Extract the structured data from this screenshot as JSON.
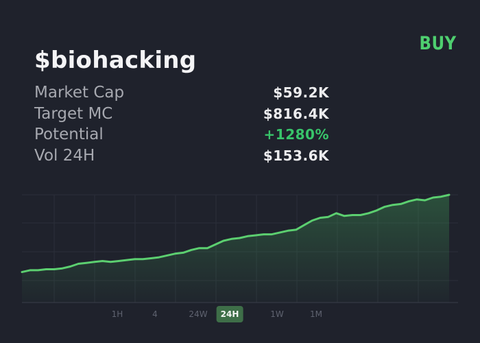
{
  "token": {
    "symbol": "$biohacking"
  },
  "action": {
    "buy_label": "BUY"
  },
  "stats": [
    {
      "label": "Market Cap",
      "value": "$59.2K",
      "highlight": false
    },
    {
      "label": "Target MC",
      "value": "$816.4K",
      "highlight": false
    },
    {
      "label": "Potential",
      "value": "+1280%",
      "highlight": true
    },
    {
      "label": "Vol 24H",
      "value": "$153.6K",
      "highlight": false
    }
  ],
  "timeframes": [
    {
      "label": "1H",
      "active": false
    },
    {
      "label": "4",
      "active": false
    },
    {
      "label": "24W",
      "active": false
    },
    {
      "label": "24H",
      "active": true
    },
    {
      "label": "1W",
      "active": false
    },
    {
      "label": "1M",
      "active": false
    }
  ],
  "colors": {
    "background": "#1f222c",
    "accent": "#4ecf6f",
    "positive": "#38c46a",
    "line": "#5ccf70"
  },
  "chart_data": {
    "type": "area",
    "y_normalized": [
      0.16,
      0.18,
      0.18,
      0.19,
      0.19,
      0.2,
      0.22,
      0.25,
      0.26,
      0.27,
      0.28,
      0.27,
      0.28,
      0.29,
      0.3,
      0.3,
      0.31,
      0.32,
      0.34,
      0.36,
      0.37,
      0.4,
      0.42,
      0.42,
      0.46,
      0.5,
      0.52,
      0.53,
      0.55,
      0.56,
      0.57,
      0.57,
      0.59,
      0.61,
      0.62,
      0.67,
      0.72,
      0.75,
      0.76,
      0.8,
      0.77,
      0.78,
      0.78,
      0.8,
      0.83,
      0.87,
      0.89,
      0.9,
      0.93,
      0.95,
      0.94,
      0.97,
      0.98,
      1.0
    ],
    "grid": true,
    "xlabel": "",
    "ylabel": ""
  }
}
